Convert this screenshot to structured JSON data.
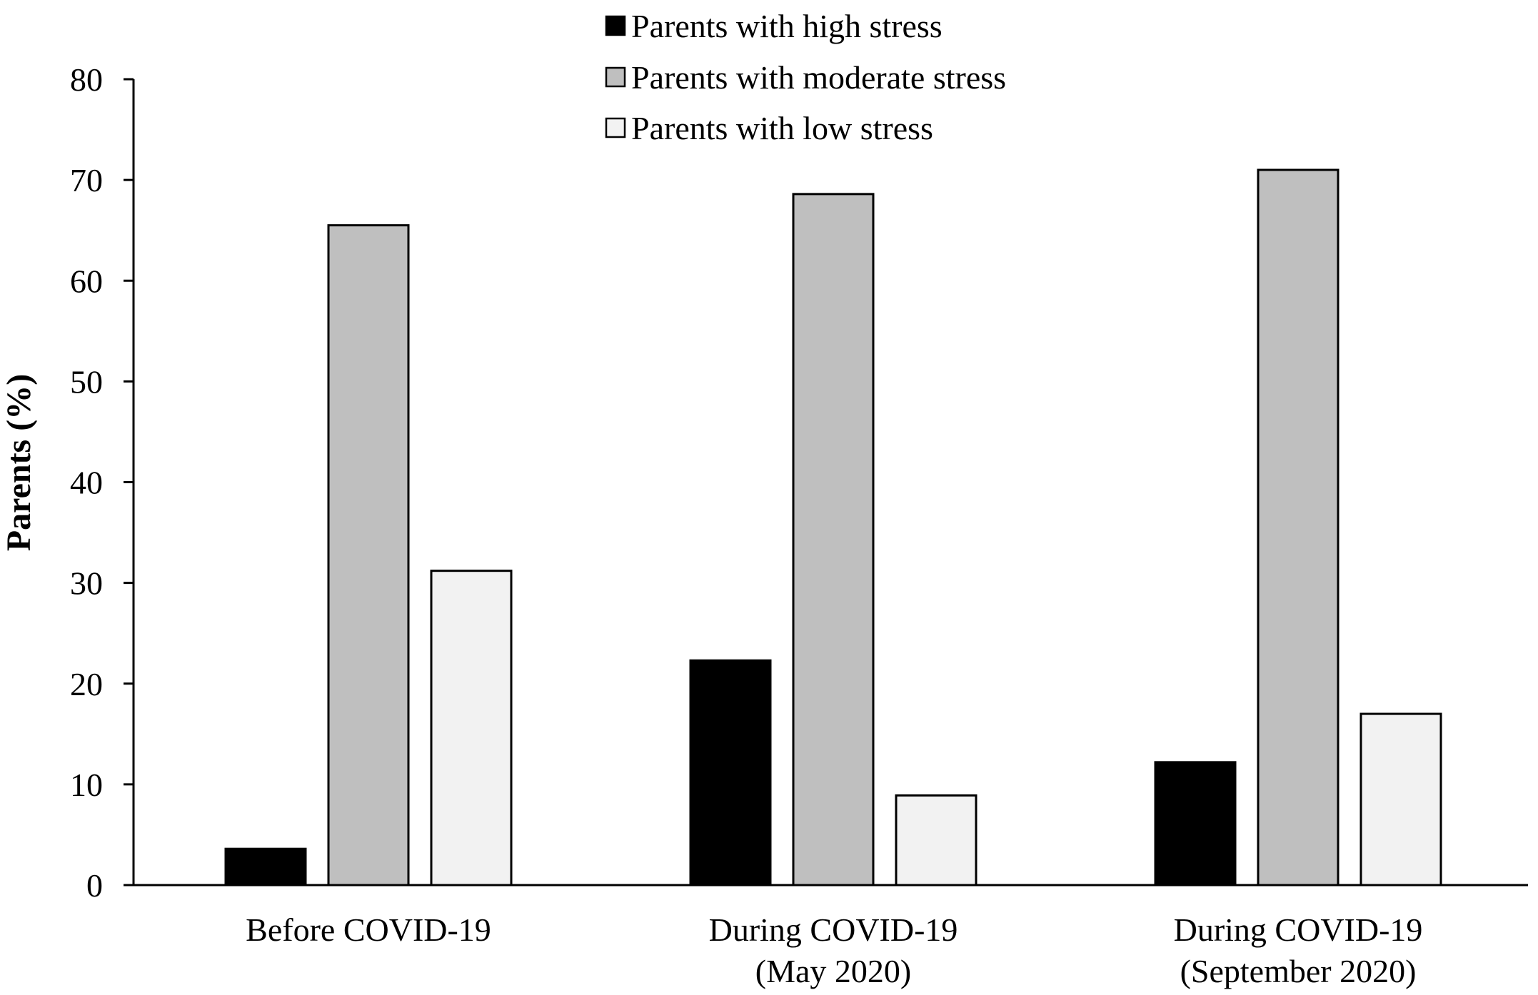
{
  "chart_data": {
    "type": "bar",
    "title": "",
    "xlabel": "",
    "ylabel": "Parents (%)",
    "ylim": [
      0,
      80
    ],
    "yticks": [
      0,
      10,
      20,
      30,
      40,
      50,
      60,
      70,
      80
    ],
    "grid": false,
    "legend_position": "top",
    "categories": [
      [
        "Before COVID-19"
      ],
      [
        "During COVID-19",
        "(May 2020)"
      ],
      [
        "During COVID-19",
        "(September 2020)"
      ]
    ],
    "series": [
      {
        "name": "Parents with high stress",
        "color": "#000000",
        "values": [
          3.6,
          22.3,
          12.2
        ]
      },
      {
        "name": "Parents with moderate stress",
        "color": "#bfbfbf",
        "values": [
          65.5,
          68.6,
          71.0
        ]
      },
      {
        "name": "Parents with low stress",
        "color": "#f2f2f2",
        "values": [
          31.2,
          8.9,
          17.0
        ]
      }
    ]
  }
}
